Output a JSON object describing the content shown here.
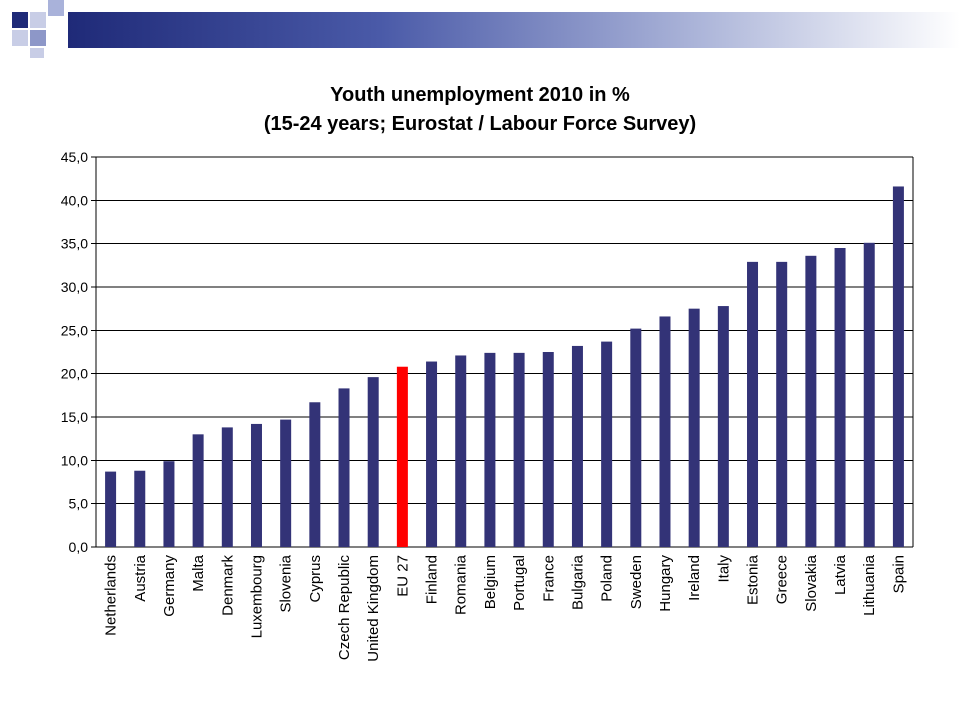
{
  "colors": {
    "bar": "#333377",
    "highlight": "#ff0000",
    "grid": "#000000",
    "header_dark": "#1f2a78"
  },
  "chart_data": {
    "type": "bar",
    "title_line1": "Youth unemployment 2010 in %",
    "title_line2": "(15-24 years; Eurostat / Labour Force Survey)",
    "xlabel": "",
    "ylabel": "",
    "ylim": [
      0,
      45
    ],
    "yticks": [
      "0,0",
      "5,0",
      "10,0",
      "15,0",
      "20,0",
      "25,0",
      "30,0",
      "35,0",
      "40,0",
      "45,0"
    ],
    "grid": true,
    "highlight_category": "EU 27",
    "categories": [
      "Netherlands",
      "Austria",
      "Germany",
      "Malta",
      "Denmark",
      "Luxembourg",
      "Slovenia",
      "Cyprus",
      "Czech Republic",
      "United Kingdom",
      "EU 27",
      "Finland",
      "Romania",
      "Belgium",
      "Portugal",
      "France",
      "Bulgaria",
      "Poland",
      "Sweden",
      "Hungary",
      "Ireland",
      "Italy",
      "Estonia",
      "Greece",
      "Slovakia",
      "Latvia",
      "Lithuania",
      "Spain"
    ],
    "values": [
      8.7,
      8.8,
      9.9,
      13.0,
      13.8,
      14.2,
      14.7,
      16.7,
      18.3,
      19.6,
      20.8,
      21.4,
      22.1,
      22.4,
      22.4,
      22.5,
      23.2,
      23.7,
      25.2,
      26.6,
      27.5,
      27.8,
      32.9,
      32.9,
      33.6,
      34.5,
      35.1,
      41.6
    ]
  }
}
